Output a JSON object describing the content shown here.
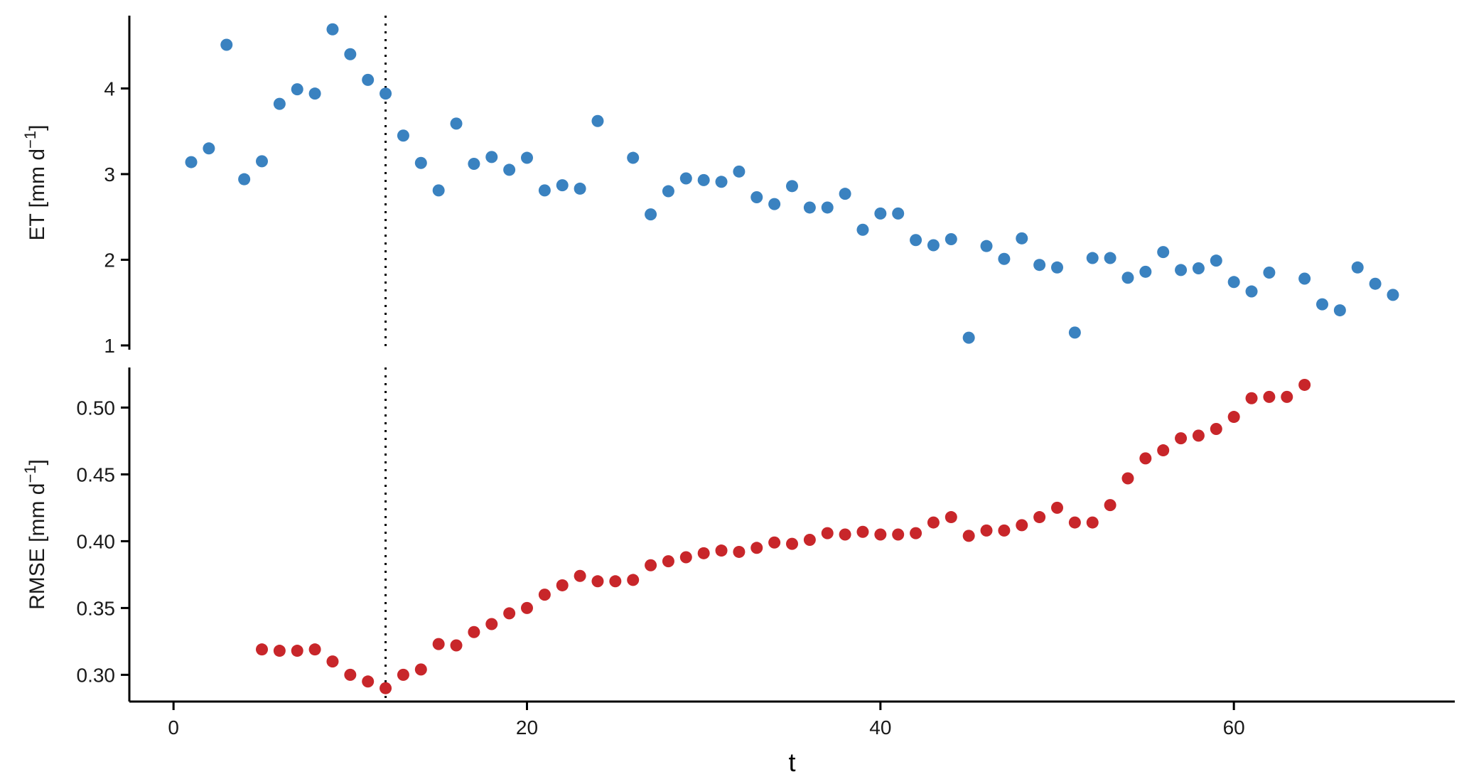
{
  "colors": {
    "et": "#3a82c0",
    "rmse": "#c8262a",
    "axis": "#000000"
  },
  "chart_data": [
    {
      "type": "scatter",
      "ylabel_text": "ET [mm d",
      "ylabel_sup": "−1",
      "ylabel_end": "]",
      "ylim": [
        0.95,
        4.85
      ],
      "yticks": [
        1,
        2,
        3,
        4
      ],
      "ytick_labels": [
        "1",
        "2",
        "3",
        "4"
      ],
      "vline_x": 12,
      "x": [
        1,
        2,
        3,
        4,
        5,
        6,
        7,
        8,
        9,
        10,
        11,
        12,
        13,
        14,
        15,
        16,
        17,
        18,
        19,
        20,
        21,
        22,
        23,
        24,
        26,
        27,
        28,
        29,
        30,
        31,
        32,
        33,
        34,
        35,
        36,
        37,
        38,
        39,
        40,
        41,
        42,
        43,
        44,
        45,
        46,
        47,
        48,
        49,
        50,
        51,
        52,
        53,
        54,
        55,
        56,
        57,
        58,
        59,
        60,
        61,
        62,
        64,
        65,
        66,
        67,
        68,
        69
      ],
      "y": [
        3.14,
        3.3,
        4.51,
        2.94,
        3.15,
        3.82,
        3.99,
        3.94,
        4.69,
        4.4,
        4.1,
        3.94,
        3.45,
        3.13,
        2.81,
        3.59,
        3.12,
        3.2,
        3.05,
        3.19,
        2.81,
        2.87,
        2.83,
        3.62,
        3.19,
        2.53,
        2.8,
        2.95,
        2.93,
        2.91,
        3.03,
        2.73,
        2.65,
        2.86,
        2.61,
        2.61,
        2.77,
        2.35,
        2.54,
        2.54,
        2.23,
        2.17,
        2.24,
        1.09,
        2.16,
        2.01,
        2.25,
        1.94,
        1.91,
        1.15,
        2.02,
        2.02,
        1.79,
        1.86,
        2.09,
        1.88,
        1.9,
        1.99,
        1.74,
        1.63,
        1.85,
        1.78,
        1.48,
        1.41,
        1.91,
        1.72,
        1.59
      ]
    },
    {
      "type": "scatter",
      "ylabel_text": "RMSE [mm d",
      "ylabel_sup": "−1",
      "ylabel_end": "]",
      "ylim": [
        0.28,
        0.53
      ],
      "yticks": [
        0.3,
        0.35,
        0.4,
        0.45,
        0.5
      ],
      "ytick_labels": [
        "0.30",
        "0.35",
        "0.40",
        "0.45",
        "0.50"
      ],
      "vline_x": 12,
      "x": [
        5,
        6,
        7,
        8,
        9,
        10,
        11,
        12,
        13,
        14,
        15,
        16,
        17,
        18,
        19,
        20,
        21,
        22,
        23,
        24,
        25,
        26,
        27,
        28,
        29,
        30,
        31,
        32,
        33,
        34,
        35,
        36,
        37,
        38,
        39,
        40,
        41,
        42,
        43,
        44,
        45,
        46,
        47,
        48,
        49,
        50,
        51,
        52,
        53,
        54,
        55,
        56,
        57,
        58,
        59,
        60,
        61,
        62,
        63,
        64
      ],
      "y": [
        0.319,
        0.318,
        0.318,
        0.319,
        0.31,
        0.3,
        0.295,
        0.29,
        0.3,
        0.304,
        0.323,
        0.322,
        0.332,
        0.338,
        0.346,
        0.35,
        0.36,
        0.367,
        0.374,
        0.37,
        0.37,
        0.371,
        0.382,
        0.385,
        0.388,
        0.391,
        0.393,
        0.392,
        0.395,
        0.399,
        0.398,
        0.401,
        0.406,
        0.405,
        0.407,
        0.405,
        0.405,
        0.406,
        0.414,
        0.418,
        0.404,
        0.408,
        0.408,
        0.412,
        0.418,
        0.425,
        0.414,
        0.414,
        0.427,
        0.447,
        0.462,
        0.468,
        0.477,
        0.479,
        0.484,
        0.493,
        0.507,
        0.508,
        0.508,
        0.517
      ]
    }
  ],
  "x_axis": {
    "title": "t",
    "xlim": [
      -2.5,
      72.5
    ],
    "ticks": [
      0,
      20,
      40,
      60
    ],
    "tick_labels": [
      "0",
      "20",
      "40",
      "60"
    ]
  }
}
